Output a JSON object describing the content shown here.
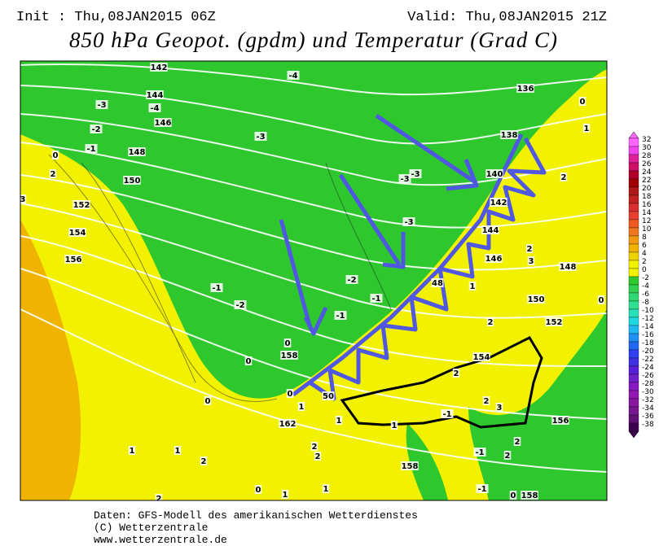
{
  "header": {
    "init": "Init : Thu,08JAN2015 06Z",
    "valid": "Valid: Thu,08JAN2015 21Z",
    "title": "850 hPa Geopot. (gpdm) und Temperatur (Grad C)"
  },
  "colorbar": {
    "labels": [
      32,
      30,
      28,
      26,
      24,
      22,
      20,
      18,
      16,
      14,
      12,
      10,
      8,
      6,
      4,
      2,
      0,
      -2,
      -4,
      -6,
      -8,
      -10,
      -12,
      -14,
      -16,
      -18,
      -20,
      -22,
      -24,
      -26,
      -28,
      -30,
      -32,
      -34,
      -36,
      -38
    ]
  },
  "map_labels": [
    142,
    -4,
    136,
    144,
    -3,
    -4,
    0,
    146,
    -2,
    -3,
    138,
    1,
    -1,
    148,
    0,
    2,
    150,
    -3,
    -3,
    140,
    2,
    3,
    152,
    142,
    -3,
    154,
    144,
    2,
    156,
    146,
    3,
    148,
    -2,
    48,
    1,
    -1,
    -1,
    150,
    0,
    -2,
    -1,
    2,
    152,
    0,
    158,
    154,
    0,
    2,
    0,
    50,
    0,
    2,
    1,
    3,
    1,
    -1,
    156,
    162,
    1,
    1,
    1,
    2,
    2,
    -1,
    2,
    2,
    2,
    158,
    0,
    1,
    1,
    -1,
    0,
    158,
    2
  ],
  "footer": [
    "Daten: GFS-Modell des amerikanischen Wetterdienstes",
    "(C) Wetterzentrale",
    "www.wetterzentrale.de"
  ]
}
